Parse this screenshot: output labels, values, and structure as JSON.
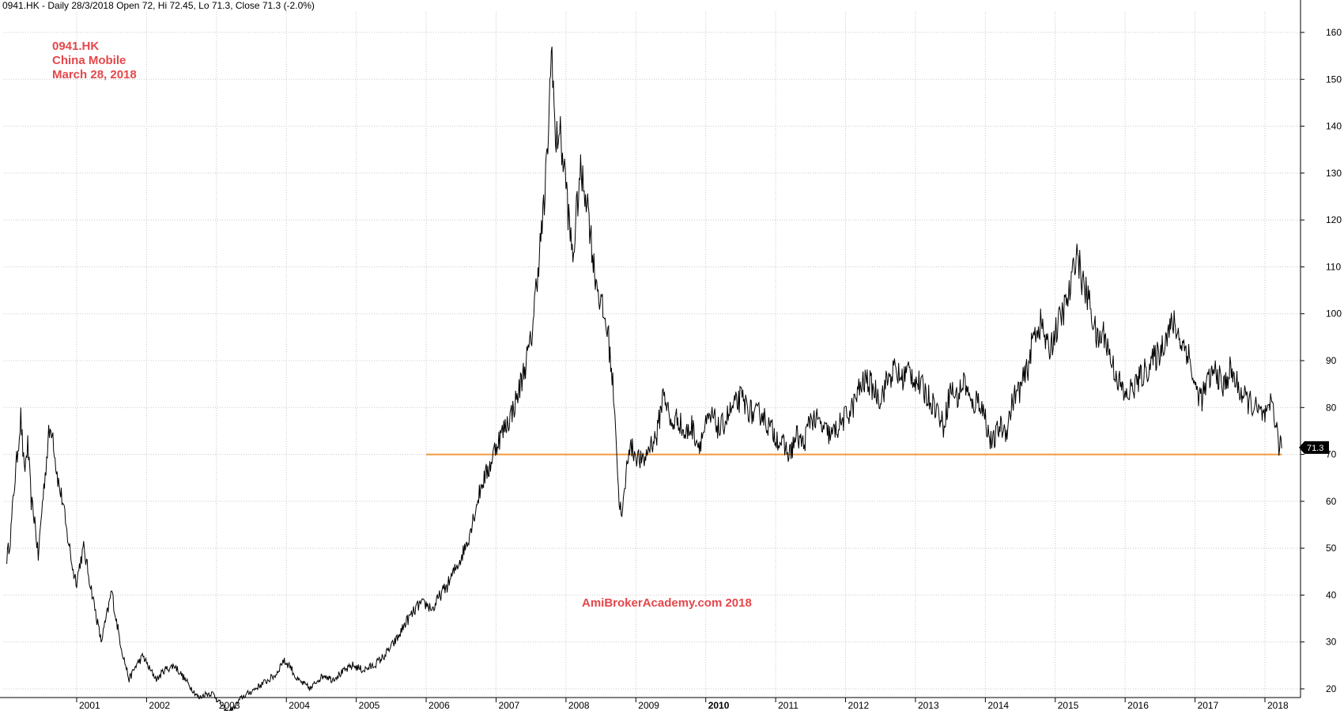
{
  "header": {
    "text": "0941.HK - Daily 28/3/2018 Open 72, Hi 72.45, Lo 71.3, Close 71.3 (-2.0%)"
  },
  "annotations": {
    "ticker": "0941.HK",
    "company": "China Mobile",
    "date": "March 28, 2018",
    "watermark": "AmiBrokerAcademy.com  2018"
  },
  "colors": {
    "price_line": "#000000",
    "support_line": "#f39a3c",
    "grid": "#c8c8c8",
    "annotation_text": "#e5474b",
    "price_tag_bg": "#000000"
  },
  "chart_data": {
    "type": "line",
    "title": "",
    "xlabel": "",
    "ylabel": "",
    "x_axis_labels": [
      "2001",
      "2002",
      "2003",
      "2004",
      "2005",
      "2006",
      "2007",
      "2008",
      "2009",
      "2010",
      "2011",
      "2012",
      "2013",
      "2014",
      "2015",
      "2016",
      "2017",
      "2018"
    ],
    "x_axis_bold_labels": [
      "2010"
    ],
    "y_axis_labels": [
      20,
      30,
      40,
      50,
      60,
      70,
      80,
      90,
      100,
      110,
      120,
      130,
      140,
      150,
      160
    ],
    "ylim": [
      10,
      167
    ],
    "xlim": [
      2000.0,
      2018.27
    ],
    "grid": true,
    "series": [
      {
        "x": [
          2000.0,
          2000.05,
          2000.1,
          2000.15,
          2000.2,
          2000.25,
          2000.3,
          2000.35,
          2000.4,
          2000.45,
          2000.5,
          2000.55,
          2000.6,
          2000.65,
          2000.7,
          2000.75,
          2000.8,
          2000.85,
          2000.9,
          2000.95,
          2001.0,
          2001.05,
          2001.1,
          2001.15,
          2001.25,
          2001.35,
          2001.45,
          2001.5,
          2001.55,
          2001.65,
          2001.75,
          2001.85,
          2001.95,
          2002.05,
          2002.15,
          2002.25,
          2002.4,
          2002.55,
          2002.65,
          2002.75,
          2002.85,
          2002.95,
          2003.05,
          2003.15,
          2003.25,
          2003.35,
          2003.45,
          2003.55,
          2003.65,
          2003.75,
          2003.85,
          2003.95,
          2004.05,
          2004.15,
          2004.25,
          2004.35,
          2004.45,
          2004.55,
          2004.65,
          2004.75,
          2004.85,
          2004.95,
          2005.1,
          2005.25,
          2005.4,
          2005.5,
          2005.6,
          2005.7,
          2005.8,
          2005.9,
          2006.0,
          2006.1,
          2006.2,
          2006.3,
          2006.4,
          2006.5,
          2006.6,
          2006.7,
          2006.8,
          2006.9,
          2007.0,
          2007.1,
          2007.2,
          2007.3,
          2007.4,
          2007.5,
          2007.6,
          2007.7,
          2007.75,
          2007.8,
          2007.85,
          2007.9,
          2008.0,
          2008.05,
          2008.1,
          2008.2,
          2008.3,
          2008.4,
          2008.5,
          2008.6,
          2008.7,
          2008.75,
          2008.8,
          2008.9,
          2009.0,
          2009.1,
          2009.2,
          2009.3,
          2009.4,
          2009.5,
          2009.6,
          2009.7,
          2009.8,
          2009.9,
          2010.0,
          2010.1,
          2010.2,
          2010.3,
          2010.4,
          2010.5,
          2010.6,
          2010.7,
          2010.8,
          2010.9,
          2011.0,
          2011.1,
          2011.2,
          2011.3,
          2011.4,
          2011.5,
          2011.6,
          2011.7,
          2011.8,
          2011.9,
          2012.0,
          2012.1,
          2012.2,
          2012.3,
          2012.4,
          2012.5,
          2012.6,
          2012.7,
          2012.8,
          2012.9,
          2013.0,
          2013.1,
          2013.2,
          2013.3,
          2013.4,
          2013.5,
          2013.6,
          2013.7,
          2013.8,
          2013.9,
          2014.0,
          2014.05,
          2014.1,
          2014.2,
          2014.3,
          2014.4,
          2014.5,
          2014.6,
          2014.7,
          2014.8,
          2014.9,
          2015.0,
          2015.1,
          2015.2,
          2015.25,
          2015.3,
          2015.4,
          2015.5,
          2015.6,
          2015.7,
          2015.8,
          2015.9,
          2016.0,
          2016.1,
          2016.2,
          2016.3,
          2016.4,
          2016.5,
          2016.6,
          2016.7,
          2016.8,
          2016.9,
          2017.0,
          2017.1,
          2017.2,
          2017.3,
          2017.4,
          2017.5,
          2017.6,
          2017.7,
          2017.8,
          2017.9,
          2018.0,
          2018.05,
          2018.1,
          2018.15,
          2018.2,
          2018.24
        ],
        "values": [
          48,
          52,
          62,
          70,
          78,
          66,
          72,
          60,
          56,
          48,
          58,
          66,
          74,
          76,
          68,
          63,
          60,
          54,
          50,
          45,
          43,
          47,
          50,
          46,
          38,
          30,
          37,
          41,
          36,
          28,
          22,
          25,
          27,
          24,
          22,
          24,
          25,
          22,
          20,
          18,
          19,
          19,
          17,
          15,
          16,
          18,
          19,
          20,
          21,
          22,
          23,
          26,
          25,
          22,
          21,
          20,
          22,
          23,
          22,
          23,
          24,
          25,
          24,
          25,
          27,
          29,
          31,
          34,
          36,
          38,
          38,
          37,
          40,
          42,
          45,
          48,
          52,
          58,
          64,
          67,
          72,
          75,
          78,
          82,
          88,
          94,
          110,
          125,
          140,
          158,
          135,
          140,
          128,
          118,
          112,
          130,
          125,
          110,
          102,
          96,
          80,
          62,
          56,
          72,
          70,
          68,
          72,
          74,
          84,
          76,
          78,
          74,
          76,
          72,
          76,
          78,
          75,
          78,
          80,
          82,
          80,
          78,
          79,
          76,
          74,
          72,
          70,
          74,
          72,
          78,
          77,
          75,
          74,
          76,
          78,
          80,
          84,
          86,
          84,
          82,
          86,
          88,
          86,
          88,
          86,
          84,
          82,
          80,
          76,
          84,
          82,
          86,
          80,
          82,
          78,
          74,
          72,
          76,
          75,
          82,
          84,
          88,
          96,
          98,
          92,
          96,
          100,
          104,
          108,
          114,
          106,
          102,
          94,
          96,
          90,
          86,
          82,
          84,
          86,
          88,
          90,
          92,
          96,
          98,
          94,
          92,
          84,
          82,
          86,
          88,
          84,
          88,
          85,
          82,
          81,
          79,
          78,
          78,
          82,
          77,
          72,
          71.3
        ]
      }
    ],
    "support_line": {
      "value": 70,
      "x_start": 2006.0,
      "x_end": 2018.24
    },
    "last_price_label": "71.3",
    "legend": "none"
  }
}
